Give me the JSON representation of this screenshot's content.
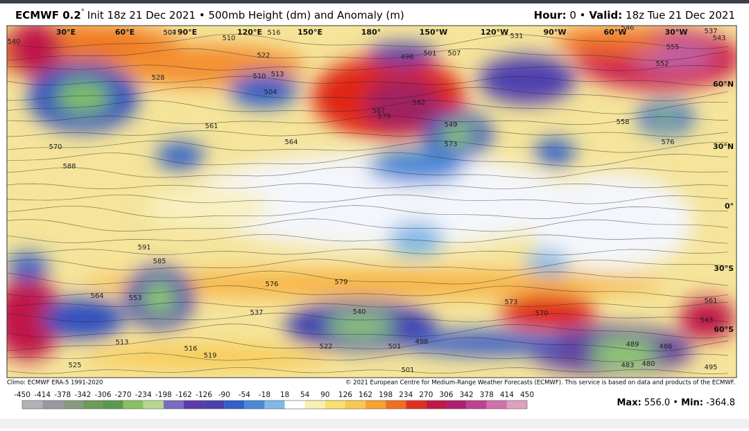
{
  "header": {
    "model": "ECMWF 0.2",
    "degree": "°",
    "subtitle": "Init 18z 21 Dec 2021 • 500mb Height (dm) and Anomaly (m)",
    "hour_label": "Hour:",
    "hour": "0 •",
    "valid_label": "Valid:",
    "valid": "18z Tue 21 Dec 2021"
  },
  "map": {
    "longitude_labels": [
      "30°E",
      "60°E",
      "90°E",
      "120°E",
      "150°E",
      "180°",
      "150°W",
      "120°W",
      "90°W",
      "60°W",
      "30°W"
    ],
    "latitude_labels": [
      "60°N",
      "30°N",
      "0°",
      "30°S",
      "60°S"
    ],
    "contour_labels": [
      "540",
      "510",
      "504",
      "507",
      "516",
      "531",
      "537",
      "543",
      "555",
      "552",
      "513",
      "510",
      "504",
      "498",
      "501",
      "507",
      "522",
      "528",
      "561",
      "570",
      "579",
      "582",
      "567",
      "573",
      "564",
      "549",
      "558",
      "576",
      "588",
      "591",
      "585",
      "576",
      "579",
      "564",
      "553",
      "546",
      "537",
      "540",
      "522",
      "501",
      "498",
      "501",
      "495",
      "483",
      "480",
      "486",
      "489",
      "570",
      "573",
      "561",
      "543",
      "519",
      "516",
      "525",
      "513"
    ]
  },
  "footer": {
    "climo": "Climo: ECMWF ERA-5 1991-2020",
    "copyright": "© 2021 European Centre for Medium-Range Weather Forecasts (ECMWF). This service is based on data and products of the ECMWF.",
    "max_label": "Max:",
    "max": "556.0",
    "min_label": "Min:",
    "min": "-364.8"
  },
  "colorbar": {
    "ticks": [
      -450,
      -414,
      -378,
      -342,
      -306,
      -270,
      -234,
      -198,
      -162,
      -126,
      -90,
      -54,
      -18,
      18,
      54,
      90,
      126,
      162,
      198,
      234,
      270,
      306,
      342,
      378,
      414,
      450
    ],
    "colors": [
      "#b4b0b8",
      "#9a96a2",
      "#8a9a80",
      "#6f9a5a",
      "#5a9a4a",
      "#8bc060",
      "#b8d890",
      "#7a6cc0",
      "#5a3ca8",
      "#4a40b0",
      "#3060c8",
      "#4a88d8",
      "#80b8e8",
      "#ffffff",
      "#f8f0b0",
      "#f8e070",
      "#f8c850",
      "#f8a030",
      "#f07020",
      "#e03020",
      "#c01848",
      "#b02070",
      "#c04090",
      "#d070a8",
      "#e0a0c0"
    ]
  }
}
